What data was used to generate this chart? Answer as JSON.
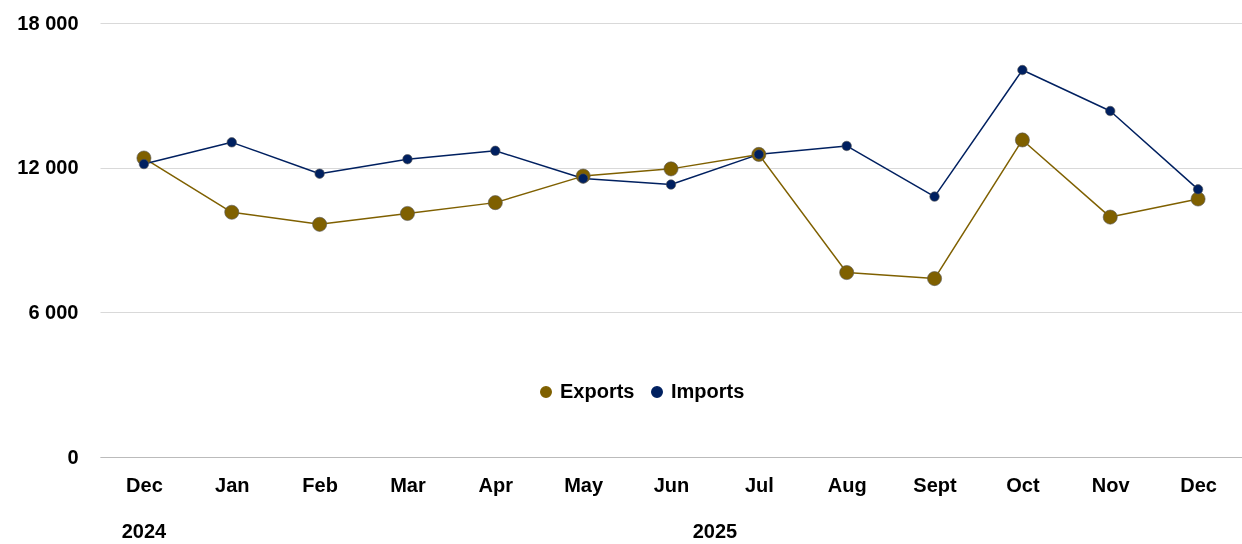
{
  "chart_data": {
    "type": "line",
    "categories": [
      "Dec",
      "Jan",
      "Feb",
      "Mar",
      "Apr",
      "May",
      "Jun",
      "Jul",
      "Aug",
      "Sept",
      "Oct",
      "Nov",
      "Dec"
    ],
    "series": [
      {
        "name": "Exports",
        "color": "#7f6000",
        "values": [
          12400,
          10150,
          9650,
          10100,
          10550,
          11650,
          11950,
          12550,
          7650,
          7400,
          13150,
          9950,
          10700
        ]
      },
      {
        "name": "Imports",
        "color": "#002060",
        "values": [
          12150,
          13050,
          11750,
          12350,
          12700,
          11550,
          11300,
          12550,
          12900,
          10800,
          16050,
          14350,
          11100
        ]
      }
    ],
    "ylim": [
      0,
      18000
    ],
    "yticks": [
      {
        "value": 0,
        "label": "0"
      },
      {
        "value": 6000,
        "label": "6 000"
      },
      {
        "value": 12000,
        "label": "12 000"
      },
      {
        "value": 18000,
        "label": "18 000"
      }
    ],
    "grid": "y",
    "legend": "bottom",
    "marker": "circle",
    "line_style": "solid",
    "annotations": [
      "2024",
      "2025"
    ]
  }
}
